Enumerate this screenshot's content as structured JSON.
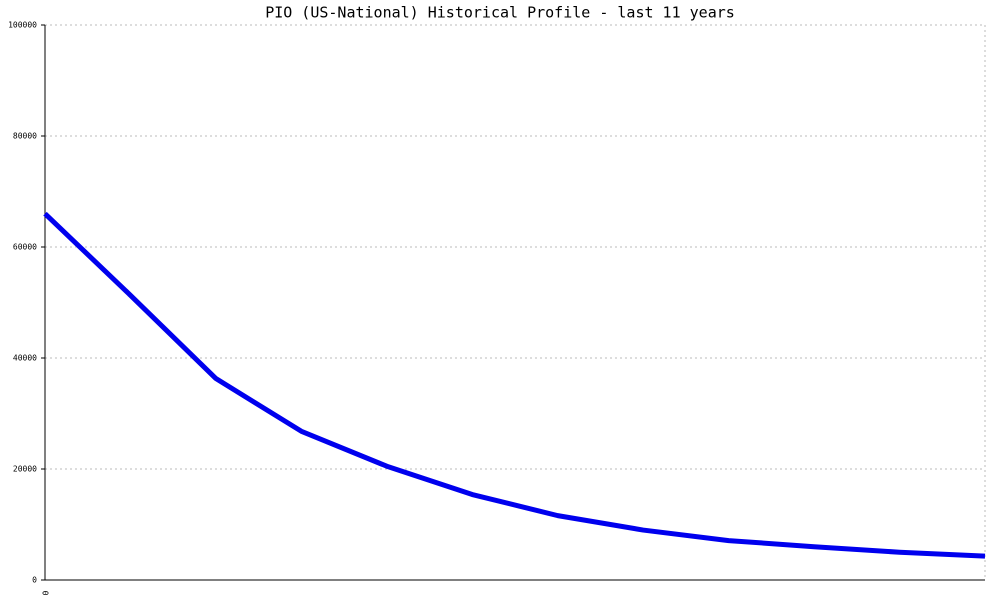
{
  "chart_data": {
    "type": "line",
    "title": "PIO (US-National) Historical Profile - last 11 years",
    "categories": [
      "0",
      null,
      null,
      null,
      null,
      null,
      null,
      null,
      null,
      null,
      null,
      null
    ],
    "series": [
      {
        "color": "#0000ee",
        "values": [
          66000,
          51300,
          36300,
          26800,
          20500,
          15400,
          11600,
          9000,
          7100,
          6000,
          5000,
          4300
        ]
      }
    ],
    "ylim": [
      0,
      100000
    ],
    "yticks": [
      0,
      20000,
      40000,
      60000,
      80000,
      100000
    ],
    "grid": true
  }
}
